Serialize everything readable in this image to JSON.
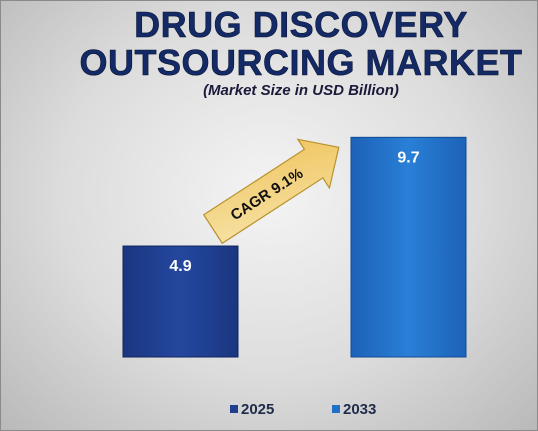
{
  "chart_data": {
    "type": "bar",
    "title": "DRUG DISCOVERY OUTSOURCING MARKET",
    "title_lines": [
      "DRUG DISCOVERY",
      "OUTSOURCING MARKET"
    ],
    "subtitle": "(Market Size in USD Billion)",
    "categories": [
      "2025",
      "2033"
    ],
    "values": [
      4.9,
      9.7
    ],
    "data_labels": [
      "4.9",
      "9.7"
    ],
    "series": [
      {
        "name": "2025",
        "values": [
          4.9,
          null
        ],
        "color": "#1f3f8f"
      },
      {
        "name": "2033",
        "values": [
          null,
          9.7
        ],
        "color": "#2170c8"
      }
    ],
    "ylim": [
      0,
      10.2
    ],
    "grid": false,
    "legend_position": "bottom",
    "annotation": {
      "text": "CAGR 9.1%",
      "shape": "arrow",
      "color": "#f3d17a"
    }
  },
  "colors": {
    "title": "#142a66",
    "bar_2025": "#1f3f8f",
    "bar_2033": "#2170c8",
    "arrow_fill": "#f3d17a",
    "background": "#dcdcdc"
  }
}
